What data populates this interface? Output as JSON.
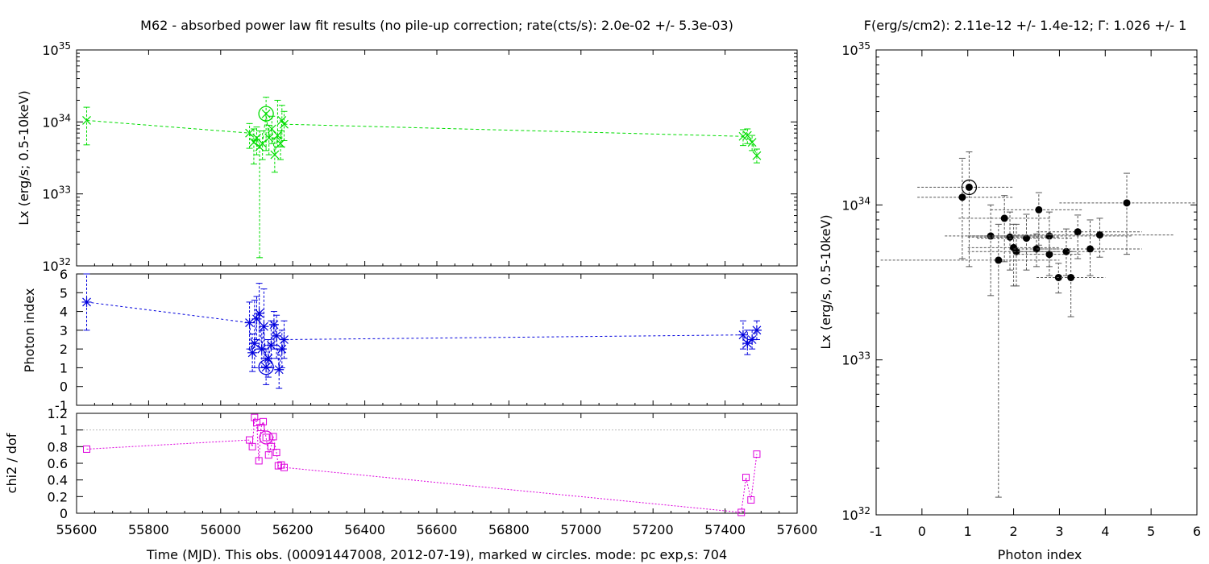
{
  "titles": {
    "left": "M62  - absorbed power law fit results (no pile-up correction; rate(cts/s): 2.0e-02 +/- 5.3e-03)",
    "right": "F(erg/s/cm2): 2.11e-12 +/- 1.4e-12; Γ: 1.026 +/- 1",
    "xlabel_left": "Time (MJD). This obs. (00091447008, 2012-07-19), marked w circles. mode: pc exp,s: 704",
    "xlabel_right": "Photon index",
    "ylabel_lx": "Lx (erg/s; 0.5-10keV)",
    "ylabel_lx_right": "Lx (erg/s, 0.5-10keV)",
    "ylabel_gamma": "Photon index",
    "ylabel_chi": "chi2 / dof"
  },
  "colors": {
    "lx": "#00dd00",
    "gamma": "#0000dd",
    "chi": "#dd00dd",
    "scatter": "#000000",
    "reference": "#bbbbbb"
  },
  "chart_data": [
    {
      "type": "line",
      "panel": "lx-vs-time",
      "log_y": true,
      "xlim": [
        55600,
        57600
      ],
      "ylim": [
        1e+32,
        1e+35
      ],
      "ytick_labels": [
        "10^32",
        "10^33",
        "10^34",
        "10^35"
      ],
      "xtick_labels": [
        "55600",
        "55800",
        "56000",
        "56200",
        "56400",
        "56600",
        "56800",
        "57000",
        "57200",
        "57400",
        "57600"
      ],
      "series": [
        {
          "marker": "x",
          "points": [
            {
              "x": 55628,
              "y": 1.05e+34,
              "lo": 4.8e+33,
              "hi": 1.6e+34
            },
            {
              "x": 56080,
              "y": 7e+33,
              "lo": 4.3e+33,
              "hi": 9.5e+33
            },
            {
              "x": 56092,
              "y": 5.2e+33,
              "lo": 2.6e+33,
              "hi": 8e+33
            },
            {
              "x": 56100,
              "y": 6e+33,
              "lo": 3.5e+33,
              "hi": 8.5e+33
            },
            {
              "x": 56108,
              "y": 4.5e+33,
              "lo": 1.3e+32,
              "hi": 7.5e+33
            },
            {
              "x": 56116,
              "y": 5e+33,
              "lo": 3e+33,
              "hi": 7.5e+33
            },
            {
              "x": 56126,
              "y": 1.3e+34,
              "lo": 4e+33,
              "hi": 2.2e+34,
              "current": true
            },
            {
              "x": 56134,
              "y": 6e+33,
              "lo": 3.5e+33,
              "hi": 9e+33
            },
            {
              "x": 56142,
              "y": 8e+33,
              "lo": 5e+33,
              "hi": 1.2e+34
            },
            {
              "x": 56150,
              "y": 3.5e+33,
              "lo": 2e+33,
              "hi": 6e+33
            },
            {
              "x": 56158,
              "y": 6.5e+33,
              "lo": 4.5e+33,
              "hi": 2e+34
            },
            {
              "x": 56166,
              "y": 5e+33,
              "lo": 3e+33,
              "hi": 7.5e+33
            },
            {
              "x": 56170,
              "y": 1.05e+34,
              "lo": 4.5e+33,
              "hi": 1.7e+34
            },
            {
              "x": 56176,
              "y": 9.3e+33,
              "lo": 5.5e+33,
              "hi": 1.4e+34
            },
            {
              "x": 57450,
              "y": 6.3e+33,
              "lo": 4.7e+33,
              "hi": 7.8e+33
            },
            {
              "x": 57462,
              "y": 6.5e+33,
              "lo": 5e+33,
              "hi": 8e+33
            },
            {
              "x": 57475,
              "y": 5.2e+33,
              "lo": 4e+33,
              "hi": 6.5e+33
            },
            {
              "x": 57488,
              "y": 3.4e+33,
              "lo": 2.7e+33,
              "hi": 4.2e+33
            }
          ]
        }
      ]
    },
    {
      "type": "line",
      "panel": "gamma-vs-time",
      "xlim": [
        55600,
        57600
      ],
      "ylim": [
        -1,
        6
      ],
      "ytick_labels": [
        "-1",
        "0",
        "1",
        "2",
        "3",
        "4",
        "5",
        "6"
      ],
      "series": [
        {
          "marker": "star",
          "points": [
            {
              "x": 55628,
              "y": 4.5,
              "lo": 3.0,
              "hi": 6.0
            },
            {
              "x": 56080,
              "y": 3.4,
              "lo": 2.0,
              "hi": 4.5
            },
            {
              "x": 56088,
              "y": 1.8,
              "lo": 0.8,
              "hi": 2.8
            },
            {
              "x": 56094,
              "y": 2.3,
              "lo": 1.0,
              "hi": 4.6
            },
            {
              "x": 56100,
              "y": 3.6,
              "lo": 2.5,
              "hi": 4.8
            },
            {
              "x": 56107,
              "y": 3.9,
              "lo": 2.0,
              "hi": 5.5
            },
            {
              "x": 56114,
              "y": 2.0,
              "lo": 1.0,
              "hi": 3.0
            },
            {
              "x": 56120,
              "y": 3.2,
              "lo": 1.5,
              "hi": 5.2
            },
            {
              "x": 56126,
              "y": 1.03,
              "lo": 0.1,
              "hi": 2.0,
              "current": true
            },
            {
              "x": 56132,
              "y": 1.5,
              "lo": 0.5,
              "hi": 2.5
            },
            {
              "x": 56140,
              "y": 2.2,
              "lo": 1.0,
              "hi": 3.5
            },
            {
              "x": 56148,
              "y": 3.3,
              "lo": 2.0,
              "hi": 4.0
            },
            {
              "x": 56155,
              "y": 2.7,
              "lo": 1.5,
              "hi": 3.8
            },
            {
              "x": 56162,
              "y": 0.9,
              "lo": -0.1,
              "hi": 2.0
            },
            {
              "x": 56170,
              "y": 2.0,
              "lo": 1.0,
              "hi": 3.0
            },
            {
              "x": 56176,
              "y": 2.5,
              "lo": 1.5,
              "hi": 3.5
            },
            {
              "x": 57450,
              "y": 2.75,
              "lo": 2.0,
              "hi": 3.5
            },
            {
              "x": 57462,
              "y": 2.3,
              "lo": 1.7,
              "hi": 3.0
            },
            {
              "x": 57475,
              "y": 2.5,
              "lo": 2.0,
              "hi": 3.0
            },
            {
              "x": 57488,
              "y": 3.0,
              "lo": 2.5,
              "hi": 3.5
            }
          ]
        }
      ]
    },
    {
      "type": "line",
      "panel": "chi-vs-time",
      "xlim": [
        55600,
        57600
      ],
      "ylim": [
        0,
        1.2
      ],
      "ytick_labels": [
        "0",
        "0.2",
        "0.4",
        "0.6",
        "0.8",
        "1",
        "1.2"
      ],
      "reference_line": 1,
      "series": [
        {
          "marker": "square",
          "points": [
            {
              "x": 55628,
              "y": 0.77
            },
            {
              "x": 56080,
              "y": 0.88
            },
            {
              "x": 56088,
              "y": 0.8
            },
            {
              "x": 56094,
              "y": 1.15
            },
            {
              "x": 56100,
              "y": 1.09
            },
            {
              "x": 56106,
              "y": 0.63
            },
            {
              "x": 56112,
              "y": 1.03
            },
            {
              "x": 56118,
              "y": 1.1
            },
            {
              "x": 56126,
              "y": 0.91,
              "current": true
            },
            {
              "x": 56133,
              "y": 0.7
            },
            {
              "x": 56140,
              "y": 0.8
            },
            {
              "x": 56146,
              "y": 0.92
            },
            {
              "x": 56155,
              "y": 0.73
            },
            {
              "x": 56160,
              "y": 0.57
            },
            {
              "x": 56168,
              "y": 0.58
            },
            {
              "x": 56176,
              "y": 0.55
            },
            {
              "x": 57445,
              "y": 0.01
            },
            {
              "x": 57458,
              "y": 0.43
            },
            {
              "x": 57472,
              "y": 0.16
            },
            {
              "x": 57488,
              "y": 0.71
            }
          ]
        }
      ]
    },
    {
      "type": "scatter",
      "panel": "lx-vs-gamma",
      "log_y": true,
      "xlim": [
        -1,
        6
      ],
      "ylim": [
        1e+32,
        1e+35
      ],
      "xtick_labels": [
        "-1",
        "0",
        "1",
        "2",
        "3",
        "4",
        "5",
        "6"
      ],
      "ytick_labels": [
        "10^32",
        "10^33",
        "10^34",
        "10^35"
      ],
      "series": [
        {
          "marker": "dot",
          "points": [
            {
              "x": 1.03,
              "y": 1.3e+34,
              "xlo": -0.1,
              "xhi": 2.0,
              "ylo": 4e+33,
              "yhi": 2.2e+34,
              "current": true
            },
            {
              "x": 0.88,
              "y": 1.12e+34,
              "xlo": -0.1,
              "xhi": 2.0,
              "ylo": 4.5e+33,
              "yhi": 2e+34
            },
            {
              "x": 1.8,
              "y": 8.2e+33,
              "xlo": 0.8,
              "xhi": 2.8,
              "ylo": 4.3e+33,
              "yhi": 1.15e+34
            },
            {
              "x": 2.55,
              "y": 9.3e+33,
              "xlo": 1.5,
              "xhi": 3.5,
              "ylo": 5.5e+33,
              "yhi": 1.2e+34
            },
            {
              "x": 4.47,
              "y": 1.03e+34,
              "xlo": 3.0,
              "xhi": 6.0,
              "ylo": 4.8e+33,
              "yhi": 1.6e+34
            },
            {
              "x": 1.5,
              "y": 6.3e+33,
              "xlo": 0.5,
              "xhi": 2.5,
              "ylo": 2.6e+33,
              "yhi": 1e+34
            },
            {
              "x": 1.92,
              "y": 6.2e+33,
              "xlo": 1.0,
              "xhi": 3.0,
              "ylo": 3.8e+33,
              "yhi": 9e+33
            },
            {
              "x": 2.28,
              "y": 6.1e+33,
              "xlo": 1.2,
              "xhi": 3.3,
              "ylo": 3.8e+33,
              "yhi": 8.7e+33
            },
            {
              "x": 2.78,
              "y": 6.3e+33,
              "xlo": 1.0,
              "xhi": 4.6,
              "ylo": 4e+33,
              "yhi": 9e+33
            },
            {
              "x": 3.4,
              "y": 6.7e+33,
              "xlo": 2.5,
              "xhi": 4.8,
              "ylo": 4.5e+33,
              "yhi": 8.6e+33
            },
            {
              "x": 3.88,
              "y": 6.4e+33,
              "xlo": 2.0,
              "xhi": 5.5,
              "ylo": 4.6e+33,
              "yhi": 8.2e+33
            },
            {
              "x": 2.0,
              "y": 5.3e+33,
              "xlo": 1.0,
              "xhi": 3.0,
              "ylo": 3e+33,
              "yhi": 7.5e+33
            },
            {
              "x": 2.06,
              "y": 5e+33,
              "xlo": 1.0,
              "xhi": 3.0,
              "ylo": 3e+33,
              "yhi": 7.5e+33
            },
            {
              "x": 2.5,
              "y": 5.2e+33,
              "xlo": 2.0,
              "xhi": 3.0,
              "ylo": 4e+33,
              "yhi": 6.5e+33
            },
            {
              "x": 2.78,
              "y": 4.8e+33,
              "xlo": 2.0,
              "xhi": 3.5,
              "ylo": 3.5e+33,
              "yhi": 6.5e+33
            },
            {
              "x": 3.15,
              "y": 5e+33,
              "xlo": 2.0,
              "xhi": 4.0,
              "ylo": 3.5e+33,
              "yhi": 7e+33
            },
            {
              "x": 3.67,
              "y": 5.2e+33,
              "xlo": 2.5,
              "xhi": 4.8,
              "ylo": 3.5e+33,
              "yhi": 8e+33
            },
            {
              "x": 1.67,
              "y": 4.4e+33,
              "xlo": -0.9,
              "xhi": 3.0,
              "ylo": 1.3e+32,
              "yhi": 7.5e+33
            },
            {
              "x": 2.98,
              "y": 3.4e+33,
              "xlo": 2.5,
              "xhi": 3.5,
              "ylo": 2.7e+33,
              "yhi": 4.2e+33
            },
            {
              "x": 3.25,
              "y": 3.4e+33,
              "xlo": 2.5,
              "xhi": 4.0,
              "ylo": 1.9e+33,
              "yhi": 5e+33
            }
          ]
        }
      ]
    }
  ]
}
